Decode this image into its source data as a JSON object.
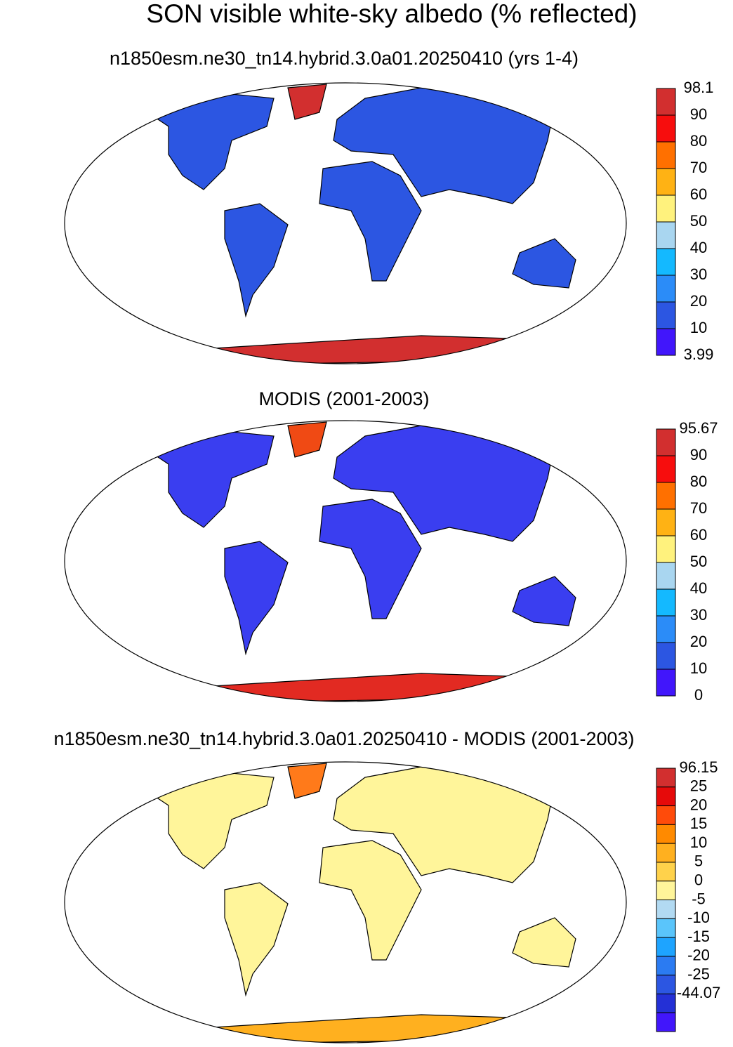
{
  "title": "SON visible white-sky albedo (% reflected)",
  "panels": [
    {
      "title": "n1850esm.ne30_tn14.hybrid.3.0a01.20250410 (yrs 1-4)",
      "colorbar": {
        "labels": [
          98.1,
          90,
          80,
          70,
          60,
          50,
          40,
          30,
          20,
          10,
          3.99
        ],
        "colors": [
          "#d22f2f",
          "#f70d0d",
          "#ff7000",
          "#ffb214",
          "#fff27d",
          "#a9d6f0",
          "#14b9ff",
          "#2b8cf8",
          "#2c56e2",
          "#4116fb"
        ]
      }
    },
    {
      "title": "MODIS (2001-2003)",
      "colorbar": {
        "labels": [
          95.67,
          90,
          80,
          70,
          60,
          50,
          40,
          30,
          20,
          10,
          0
        ],
        "colors": [
          "#d22f2f",
          "#f70d0d",
          "#ff7000",
          "#ffb214",
          "#fff27d",
          "#a9d6f0",
          "#14b9ff",
          "#2b8cf8",
          "#2c56e2",
          "#4116fb"
        ]
      }
    },
    {
      "title": "n1850esm.ne30_tn14.hybrid.3.0a01.20250410 - MODIS (2001-2003)",
      "colorbar": {
        "labels": [
          96.15,
          25,
          20,
          15,
          10,
          5,
          0,
          -5,
          -10,
          -15,
          -20,
          -25,
          -44.07
        ],
        "colors": [
          "#d22f2f",
          "#e60a0a",
          "#ff4b0a",
          "#ff8a00",
          "#ffb01f",
          "#ffd24b",
          "#fff59a",
          "#b2daf2",
          "#5ac5fb",
          "#1ea4ff",
          "#2b7bf2",
          "#2c56e2",
          "#2430d6",
          "#4116fb"
        ]
      }
    }
  ]
}
